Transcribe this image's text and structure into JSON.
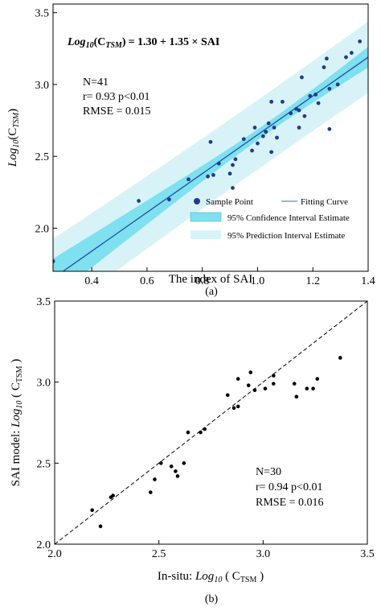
{
  "chart_data": [
    {
      "type": "scatter",
      "panel_label": "(a)",
      "xlabel": "The index of SAI",
      "ylabel": {
        "pre": "Log",
        "sub1": "10",
        "mid": "(C",
        "sub2": "TSM",
        "post": ")"
      },
      "xlim": [
        0.26,
        1.4
      ],
      "ylim": [
        1.7,
        3.56
      ],
      "xticks": [
        0.4,
        0.6,
        0.8,
        1.0,
        1.2,
        1.4
      ],
      "xtick_labels": [
        "0.4",
        "0.6",
        "0.8",
        "1.0",
        "1.2",
        "1.4"
      ],
      "yticks": [
        2.0,
        2.5,
        3.0,
        3.5
      ],
      "ytick_labels": [
        "2.0",
        "2.5",
        "3.0",
        "3.5"
      ],
      "equation": {
        "lhs_pre": "Log",
        "lhs_sub1": "10",
        "lhs_mid": "(C",
        "lhs_sub2": "TSM",
        "lhs_post": ")",
        "rhs": "= 1.30 +  1.35 × SAI"
      },
      "fit": {
        "intercept": 1.3,
        "slope": 1.35
      },
      "stats": [
        "N=41",
        "r= 0.93  p<0.01",
        "RMSE = 0.015"
      ],
      "legend": {
        "placement": "bottom-right",
        "items": [
          {
            "label": "Sample Point",
            "kind": "point"
          },
          {
            "label": "Fitting Curve",
            "kind": "line"
          },
          {
            "label": "95% Confidence Interval Estimate",
            "kind": "band-dark"
          },
          {
            "label": "95% Prediction Interval Estimate",
            "kind": "band-light"
          }
        ]
      },
      "colors": {
        "point": "#1f3c8c",
        "line": "#1b4fa3",
        "confidence": "#7fe0ef",
        "prediction": "#d7f3f8"
      },
      "points": [
        [
          0.26,
          1.77
        ],
        [
          0.57,
          2.19
        ],
        [
          0.68,
          2.2
        ],
        [
          0.75,
          2.34
        ],
        [
          0.82,
          2.36
        ],
        [
          0.83,
          2.6
        ],
        [
          0.84,
          2.37
        ],
        [
          0.86,
          2.45
        ],
        [
          0.9,
          2.38
        ],
        [
          0.91,
          2.44
        ],
        [
          0.91,
          2.28
        ],
        [
          0.92,
          2.48
        ],
        [
          0.95,
          2.62
        ],
        [
          0.98,
          2.54
        ],
        [
          0.99,
          2.7
        ],
        [
          1.0,
          2.59
        ],
        [
          1.02,
          2.64
        ],
        [
          1.03,
          2.67
        ],
        [
          1.04,
          2.73
        ],
        [
          1.05,
          2.53
        ],
        [
          1.05,
          2.88
        ],
        [
          1.06,
          2.7
        ],
        [
          1.07,
          2.63
        ],
        [
          1.09,
          2.88
        ],
        [
          1.12,
          2.8
        ],
        [
          1.14,
          2.83
        ],
        [
          1.15,
          2.82
        ],
        [
          1.15,
          2.7
        ],
        [
          1.16,
          3.05
        ],
        [
          1.17,
          2.78
        ],
        [
          1.19,
          2.92
        ],
        [
          1.21,
          2.93
        ],
        [
          1.22,
          2.87
        ],
        [
          1.24,
          3.12
        ],
        [
          1.25,
          3.18
        ],
        [
          1.26,
          2.69
        ],
        [
          1.26,
          2.97
        ],
        [
          1.29,
          3.0
        ],
        [
          1.32,
          3.19
        ],
        [
          1.34,
          3.22
        ],
        [
          1.37,
          3.3
        ]
      ]
    },
    {
      "type": "scatter",
      "panel_label": "(b)",
      "xlabel": {
        "pre": "In-situ: ",
        "log": "Log",
        "sub1": "10",
        "mid": " ( C",
        "sub2": "TSM",
        "post": " )"
      },
      "ylabel": {
        "pre": "SAI model: ",
        "log": "Log",
        "sub1": "10",
        "mid": " ( C",
        "sub2": "TSM",
        "post": " )"
      },
      "xlim": [
        2.0,
        3.5
      ],
      "ylim": [
        2.0,
        3.5
      ],
      "xticks": [
        2.0,
        2.5,
        3.0,
        3.5
      ],
      "xtick_labels": [
        "2.0",
        "2.5",
        "3.0",
        "3.5"
      ],
      "yticks": [
        2.0,
        2.5,
        3.0,
        3.5
      ],
      "ytick_labels": [
        "2.0",
        "2.5",
        "3.0",
        "3.5"
      ],
      "reference_line": "1:1",
      "stats": [
        "N=30",
        "r= 0.94   p<0.01",
        "RMSE = 0.016"
      ],
      "colors": {
        "point": "#000000"
      },
      "points": [
        [
          2.18,
          2.21
        ],
        [
          2.22,
          2.11
        ],
        [
          2.27,
          2.29
        ],
        [
          2.28,
          2.3
        ],
        [
          2.46,
          2.32
        ],
        [
          2.48,
          2.4
        ],
        [
          2.51,
          2.5
        ],
        [
          2.56,
          2.48
        ],
        [
          2.58,
          2.45
        ],
        [
          2.59,
          2.42
        ],
        [
          2.62,
          2.5
        ],
        [
          2.64,
          2.69
        ],
        [
          2.7,
          2.69
        ],
        [
          2.72,
          2.71
        ],
        [
          2.83,
          2.92
        ],
        [
          2.86,
          2.84
        ],
        [
          2.88,
          3.02
        ],
        [
          2.88,
          2.85
        ],
        [
          2.93,
          2.98
        ],
        [
          2.94,
          3.06
        ],
        [
          2.96,
          2.95
        ],
        [
          3.01,
          2.96
        ],
        [
          3.05,
          3.04
        ],
        [
          3.05,
          2.99
        ],
        [
          3.15,
          2.99
        ],
        [
          3.16,
          2.91
        ],
        [
          3.21,
          2.96
        ],
        [
          3.24,
          2.96
        ],
        [
          3.26,
          3.02
        ],
        [
          3.37,
          3.15
        ]
      ]
    }
  ]
}
